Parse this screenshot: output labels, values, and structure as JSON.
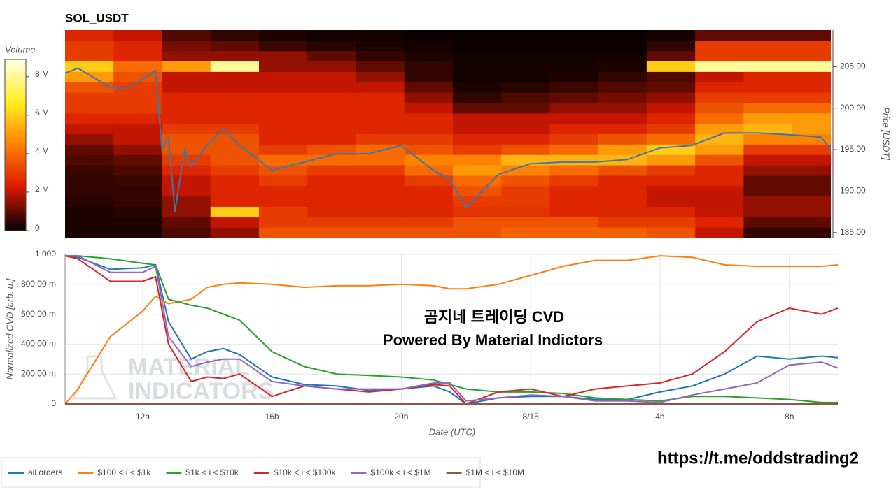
{
  "chart_data": [
    {
      "type": "heatmap",
      "title": "SOL_USDT",
      "ylabel": "Price [USDT]",
      "colorbar_title": "Volume",
      "xlim": [
        9.6,
        33.3
      ],
      "ylim": [
        184.4,
        209.4
      ],
      "yticks": [
        {
          "value": 185,
          "label": "185.00"
        },
        {
          "value": 190,
          "label": "190.00"
        },
        {
          "value": 195,
          "label": "195.00"
        },
        {
          "value": 200,
          "label": "200.00"
        },
        {
          "value": 205,
          "label": "205.00"
        }
      ],
      "zlim": [
        0,
        8.9
      ],
      "zticks": [
        0,
        {
          "value": 2,
          "label": "2 M"
        },
        {
          "value": 4,
          "label": "4 M"
        },
        {
          "value": 6,
          "label": "6 M"
        },
        {
          "value": 8,
          "label": "8 M"
        }
      ],
      "colorscale": [
        "#000000",
        "#d81800",
        "#ff8000",
        "#ffef20",
        "#ffffe8"
      ],
      "xbins": [
        9.6,
        11.1,
        12.6,
        14.1,
        15.6,
        17.1,
        18.6,
        20.1,
        21.6,
        23.1,
        24.6,
        26.1,
        27.6,
        29.1,
        30.6,
        32.1,
        33.3
      ],
      "ybins": [
        184.4,
        185.65,
        186.9,
        188.15,
        189.4,
        190.65,
        191.9,
        193.15,
        194.4,
        195.65,
        196.9,
        198.15,
        199.4,
        200.65,
        201.9,
        203.15,
        204.4,
        205.65,
        206.9,
        208.15,
        209.4
      ],
      "z": [
        [
          0.3,
          0.3,
          0.8,
          1.5,
          3.5,
          3.5,
          3.5,
          3.5,
          3.5,
          3.8,
          3.8,
          3.8,
          3.5,
          2,
          0.5,
          0.5
        ],
        [
          0.3,
          0.3,
          1,
          2,
          3,
          3,
          3,
          3,
          3.5,
          3.5,
          3.5,
          3,
          3,
          2.5,
          1,
          1
        ],
        [
          0.3,
          0.4,
          1.5,
          6,
          3,
          2.5,
          2.5,
          2.5,
          2.8,
          2.8,
          2.5,
          2.5,
          2.5,
          2,
          1.5,
          1.5
        ],
        [
          0.4,
          0.5,
          1.5,
          2.5,
          2.5,
          2.5,
          2.5,
          2.5,
          3,
          3,
          2.5,
          2.5,
          2,
          2,
          1.5,
          1.5
        ],
        [
          0.5,
          0.5,
          2,
          2.5,
          2.5,
          2.5,
          2.5,
          2.5,
          3.5,
          3,
          2.5,
          2.5,
          2,
          2,
          1,
          1
        ],
        [
          0.5,
          0.6,
          2,
          2.5,
          3,
          2.5,
          2.5,
          3,
          4,
          3.5,
          3,
          2.5,
          2.5,
          2.5,
          1,
          1
        ],
        [
          0.6,
          0.8,
          2.5,
          3,
          3.5,
          3,
          3,
          4,
          5,
          4.5,
          4,
          3.5,
          3,
          2.5,
          1.5,
          1.5
        ],
        [
          0.8,
          1,
          3,
          3.5,
          4,
          4,
          4,
          4.5,
          4.5,
          5.5,
          5.5,
          5.5,
          5,
          3.5,
          2,
          2
        ],
        [
          1,
          1.5,
          3.5,
          3.5,
          3,
          3.5,
          4,
          3.5,
          3,
          3.5,
          4,
          5,
          6,
          5,
          3,
          3
        ],
        [
          1.5,
          2,
          3.5,
          3.5,
          2.5,
          2.5,
          3,
          3,
          2.5,
          2.5,
          3,
          3.5,
          4,
          5.5,
          4.5,
          4.5
        ],
        [
          2,
          2,
          3,
          3,
          2.5,
          2.5,
          2.5,
          2.5,
          2,
          2,
          2.5,
          2.5,
          3,
          5,
          5.5,
          5
        ],
        [
          2.5,
          2.5,
          2.5,
          2.5,
          2.5,
          2.5,
          2.5,
          2.5,
          2,
          2,
          2,
          2,
          2.5,
          4,
          5,
          5
        ],
        [
          3,
          3,
          2.5,
          2.5,
          2.5,
          2.5,
          2.5,
          2,
          1,
          1,
          1.5,
          1.5,
          2,
          3.5,
          4,
          4
        ],
        [
          3,
          3,
          2.5,
          2.5,
          2.5,
          2.5,
          2.5,
          1.5,
          0.5,
          0.8,
          1,
          1.2,
          1.5,
          3,
          3,
          3
        ],
        [
          3.5,
          3,
          2,
          2,
          2,
          2,
          2,
          1,
          0.3,
          0.4,
          0.6,
          0.8,
          1,
          2.5,
          2.5,
          2.5
        ],
        [
          5,
          3.5,
          2,
          2,
          2,
          2,
          1.5,
          0.5,
          0.2,
          0.2,
          0.3,
          0.5,
          0.8,
          2,
          2.5,
          2.5
        ],
        [
          6,
          4,
          5,
          8,
          1.5,
          1.5,
          1,
          0.5,
          0.2,
          0.2,
          0.2,
          0.3,
          6,
          8,
          8,
          8
        ],
        [
          3,
          2.5,
          1.5,
          1.5,
          1.5,
          1,
          0.5,
          0.3,
          0.2,
          0.2,
          0.2,
          0.2,
          1,
          3,
          3,
          3
        ],
        [
          3,
          2.5,
          1.2,
          1,
          0.6,
          0.4,
          0.3,
          0.2,
          0.1,
          0.1,
          0.1,
          0.1,
          0.5,
          3,
          3,
          3
        ],
        [
          2.5,
          2,
          0.8,
          0.5,
          0.3,
          0.2,
          0.2,
          0.1,
          0.1,
          0.1,
          0.1,
          0.1,
          0.2,
          1,
          1,
          1
        ]
      ],
      "line": {
        "color": "#3a78b5",
        "x": [
          9.6,
          10,
          11,
          11.5,
          12,
          12.4,
          12.6,
          12.8,
          13,
          13.3,
          13.5,
          14,
          14.5,
          15,
          16,
          17,
          18,
          19,
          20,
          21,
          21.5,
          22,
          22.5,
          23,
          24,
          25,
          26,
          27,
          28,
          29,
          30,
          31,
          32,
          33,
          33.3
        ],
        "values": [
          204.2,
          204.8,
          202.5,
          202.3,
          203.5,
          204.5,
          195,
          196.5,
          187.5,
          195,
          193,
          195.5,
          197.5,
          195.5,
          192.5,
          193.5,
          194.5,
          194.5,
          195.5,
          192.5,
          191.5,
          188,
          190,
          192,
          193.3,
          193.5,
          193.5,
          193.8,
          195.2,
          195.5,
          197,
          197,
          196.8,
          196.5,
          195
        ]
      }
    },
    {
      "type": "line",
      "xlabel": "Date (UTC)",
      "ylabel": "Normalized CVD [arb. u.]",
      "xlim": [
        9.6,
        33.5
      ],
      "ylim": [
        0,
        1
      ],
      "xticks": [
        {
          "value": 12,
          "label": "12h"
        },
        {
          "value": 16,
          "label": "16h"
        },
        {
          "value": 20,
          "label": "20h"
        },
        {
          "value": 24,
          "label": "8/15"
        },
        {
          "value": 28,
          "label": "4h"
        },
        {
          "value": 32,
          "label": "8h"
        }
      ],
      "yticks": [
        0,
        {
          "value": 0.2,
          "label": "200.00 m"
        },
        {
          "value": 0.4,
          "label": "400.00 m"
        },
        {
          "value": 0.6,
          "label": "600.00 m"
        },
        {
          "value": 0.8,
          "label": "800.00 m"
        },
        {
          "value": 1,
          "label": "1.000"
        }
      ],
      "grid": true,
      "x": [
        9.6,
        10,
        11,
        12,
        12.4,
        12.8,
        13.5,
        14,
        14.5,
        15,
        16,
        17,
        18,
        19,
        20,
        21,
        21.5,
        22,
        23,
        24,
        25,
        26,
        27,
        28,
        29,
        30,
        31,
        32,
        33,
        33.5
      ],
      "series": [
        {
          "name": "all orders",
          "color": "#1f77b4",
          "values": [
            0.99,
            0.98,
            0.9,
            0.91,
            0.93,
            0.55,
            0.3,
            0.35,
            0.37,
            0.33,
            0.18,
            0.13,
            0.12,
            0.09,
            0.1,
            0.12,
            0.08,
            0.0,
            0.04,
            0.05,
            0.05,
            0.03,
            0.03,
            0.08,
            0.12,
            0.2,
            0.32,
            0.3,
            0.32,
            0.31
          ]
        },
        {
          "name": "$100 < i < $1k",
          "color": "#ff7f0e",
          "values": [
            0,
            0.1,
            0.45,
            0.62,
            0.72,
            0.67,
            0.7,
            0.78,
            0.8,
            0.81,
            0.8,
            0.78,
            0.79,
            0.79,
            0.8,
            0.79,
            0.77,
            0.77,
            0.8,
            0.86,
            0.92,
            0.96,
            0.96,
            0.99,
            0.98,
            0.93,
            0.92,
            0.92,
            0.92,
            0.93
          ]
        },
        {
          "name": "$1k < i < $10k",
          "color": "#2ca02c",
          "values": [
            0.99,
            0.99,
            0.97,
            0.94,
            0.93,
            0.7,
            0.66,
            0.64,
            0.6,
            0.56,
            0.35,
            0.25,
            0.2,
            0.19,
            0.18,
            0.16,
            0.13,
            0.1,
            0.08,
            0.08,
            0.07,
            0.04,
            0.03,
            0.02,
            0.05,
            0.05,
            0.04,
            0.03,
            0.01,
            0.01
          ]
        },
        {
          "name": "$10k < i < $100k",
          "color": "#d62728",
          "values": [
            0.99,
            0.97,
            0.82,
            0.82,
            0.85,
            0.4,
            0.15,
            0.18,
            0.17,
            0.2,
            0.05,
            0.12,
            0.1,
            0.08,
            0.1,
            0.13,
            0.12,
            0.0,
            0.08,
            0.1,
            0.05,
            0.1,
            0.12,
            0.14,
            0.2,
            0.35,
            0.55,
            0.64,
            0.6,
            0.64
          ]
        },
        {
          "name": "$100k < i < $1M",
          "color": "#9467bd",
          "values": [
            0.99,
            0.99,
            0.88,
            0.88,
            0.92,
            0.45,
            0.25,
            0.28,
            0.3,
            0.3,
            0.15,
            0.12,
            0.1,
            0.1,
            0.1,
            0.14,
            0.14,
            0.02,
            0.04,
            0.06,
            0.05,
            0.02,
            0.02,
            0.01,
            0.06,
            0.1,
            0.14,
            0.26,
            0.28,
            0.24
          ]
        },
        {
          "name": "$1M < i < $10M",
          "color": "#8c564b",
          "values": [
            0,
            0,
            0,
            0,
            0,
            0,
            0,
            0,
            0,
            0,
            0,
            0,
            0,
            0,
            0,
            0,
            0,
            0,
            0,
            0,
            0,
            0,
            0,
            0,
            0,
            0,
            0,
            0,
            0,
            0
          ]
        }
      ],
      "annotations": [
        "곰지네 트레이딩 CVD",
        "Powered By Material Indictors"
      ],
      "watermark": [
        "MATERIAL",
        "INDICATORS"
      ]
    }
  ],
  "footer_link": "https://t.me/oddstrading2"
}
